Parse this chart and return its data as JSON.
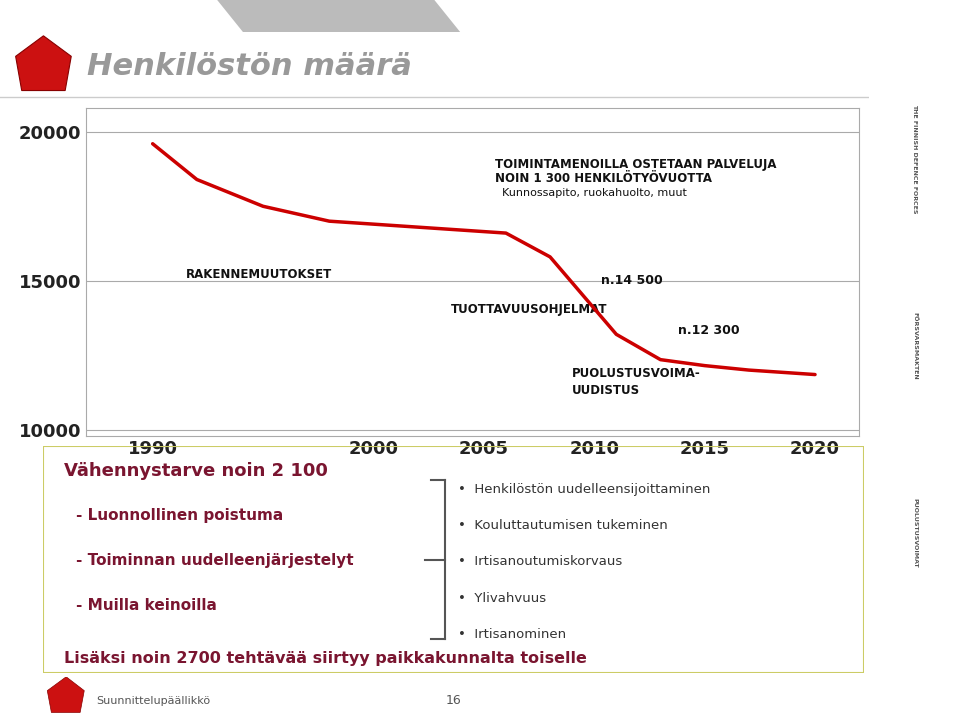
{
  "title": "Henkilöstön määrä",
  "slide_bg": "#ffffff",
  "chart_bg": "#ffffff",
  "header_bar_color": "#aaaaaa",
  "line_color": "#cc0000",
  "line_width": 2.5,
  "curve_x": [
    1990,
    1992,
    1995,
    1998,
    2000,
    2002,
    2004,
    2006,
    2008,
    2009.5,
    2011,
    2013,
    2015,
    2017,
    2019,
    2020
  ],
  "curve_y": [
    19600,
    18400,
    17500,
    17000,
    16900,
    16800,
    16700,
    16600,
    15800,
    14500,
    13200,
    12350,
    12150,
    12000,
    11900,
    11850
  ],
  "ylim_lo": 9800,
  "ylim_hi": 20800,
  "yticks": [
    10000,
    15000,
    20000
  ],
  "x_years": [
    1990,
    2000,
    2005,
    2010,
    2015,
    2020
  ],
  "xlim_lo": 1987,
  "xlim_hi": 2022,
  "dark_red": "#7a1530",
  "info_box_bg": "#ffffcc",
  "info_box_border": "#cccc66",
  "right_bar_bg": "#c8c8c8",
  "title_color": "#999999",
  "annotation_color": "#111111",
  "annot_fontsize": 8.5,
  "ytick_fontsize": 13,
  "xtick_fontsize": 13
}
